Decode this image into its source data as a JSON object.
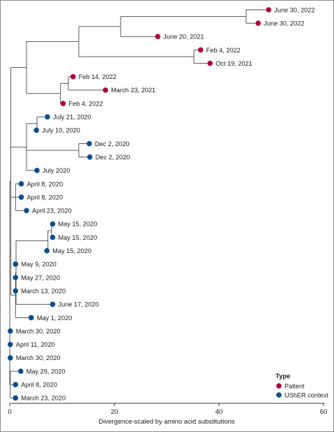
{
  "chart_data": {
    "type": "scatter",
    "subtype": "phylogenetic-tree",
    "title": "",
    "xlabel": "Divergence-scaled by amino acid substitutions",
    "ylabel": "",
    "xlim": [
      0,
      60
    ],
    "xticks": [
      0,
      20,
      40,
      60
    ],
    "grid": false,
    "legend": {
      "title": "Type",
      "placement": "bottom-right",
      "entries": [
        {
          "name": "Patient",
          "color": "#b5003c"
        },
        {
          "name": "UShER context",
          "color": "#0b4e8f"
        }
      ]
    },
    "colors": {
      "Patient": "#b5003c",
      "UShER context": "#0b4e8f",
      "branch": "#444444"
    },
    "tips": [
      {
        "label": "June 30, 2022",
        "x": 49.5,
        "type": "Patient"
      },
      {
        "label": "June 30, 2022",
        "x": 47.5,
        "type": "Patient"
      },
      {
        "label": "June 20, 2021",
        "x": 28.3,
        "type": "Patient"
      },
      {
        "label": "Feb 4, 2022",
        "x": 36.5,
        "type": "Patient"
      },
      {
        "label": "Oct 19, 2021",
        "x": 38.3,
        "type": "Patient"
      },
      {
        "label": "Feb 14, 2022",
        "x": 12.1,
        "type": "Patient"
      },
      {
        "label": "March 23, 2021",
        "x": 18.3,
        "type": "Patient"
      },
      {
        "label": "Feb 4, 2022",
        "x": 10.2,
        "type": "Patient"
      },
      {
        "label": "July 21, 2020",
        "x": 7.2,
        "type": "UShER context"
      },
      {
        "label": "July 10, 2020",
        "x": 5.1,
        "type": "UShER context"
      },
      {
        "label": "Dec 2, 2020",
        "x": 15.2,
        "type": "UShER context"
      },
      {
        "label": "Dec 2, 2020",
        "x": 15.3,
        "type": "UShER context"
      },
      {
        "label": "July 2020",
        "x": 5.2,
        "type": "UShER context"
      },
      {
        "label": "April 8, 2020",
        "x": 2.2,
        "type": "UShER context"
      },
      {
        "label": "April 8, 2020",
        "x": 2.2,
        "type": "UShER context"
      },
      {
        "label": "April 23, 2020",
        "x": 3.2,
        "type": "UShER context"
      },
      {
        "label": "May 15, 2020",
        "x": 8.2,
        "type": "UShER context"
      },
      {
        "label": "May 15, 2020",
        "x": 8.2,
        "type": "UShER context"
      },
      {
        "label": "May 15, 2020",
        "x": 7.1,
        "type": "UShER context"
      },
      {
        "label": "May 9, 2020",
        "x": 1.1,
        "type": "UShER context"
      },
      {
        "label": "May 27, 2020",
        "x": 1.1,
        "type": "UShER context"
      },
      {
        "label": "March 13, 2020",
        "x": 1.1,
        "type": "UShER context"
      },
      {
        "label": "June 17, 2020",
        "x": 8.2,
        "type": "UShER context"
      },
      {
        "label": "May 1, 2020",
        "x": 4.1,
        "type": "UShER context"
      },
      {
        "label": "March 30, 2020",
        "x": 0.1,
        "type": "UShER context"
      },
      {
        "label": "April 11, 2020",
        "x": 0.1,
        "type": "UShER context"
      },
      {
        "label": "March 30, 2020",
        "x": 0.1,
        "type": "UShER context"
      },
      {
        "label": "May 29, 2020",
        "x": 2.1,
        "type": "UShER context"
      },
      {
        "label": "April 8, 2020",
        "x": 1.1,
        "type": "UShER context"
      },
      {
        "label": "March 23, 2020",
        "x": 1.1,
        "type": "UShER context"
      }
    ]
  }
}
